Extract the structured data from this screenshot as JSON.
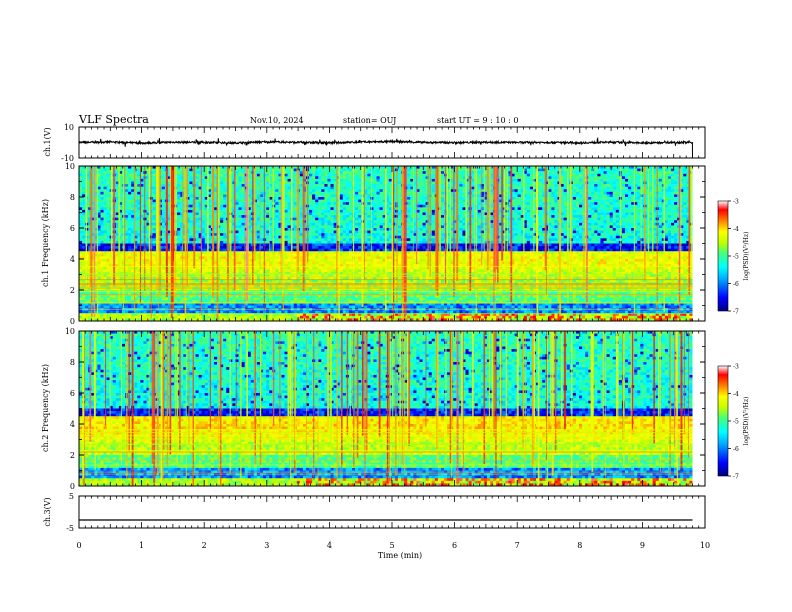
{
  "header": {
    "title": "VLF Spectra",
    "date": "Nov.10, 2024",
    "station": "station= OUJ",
    "start": "start UT = 9 : 10 : 0"
  },
  "colors": {
    "waveform": "#000000",
    "background": "#ffffff",
    "colormap": [
      "#000080",
      "#0000ff",
      "#00a0ff",
      "#00ffff",
      "#40ff80",
      "#c0ff00",
      "#ffff00",
      "#ff8000",
      "#ff0000",
      "#ffffff"
    ]
  },
  "chart_data": [
    {
      "type": "line",
      "id": "ch1_waveform",
      "ylabel": "ch.1(V)",
      "ylim": [
        -10,
        10
      ],
      "y_ticks": [
        "10",
        "-10"
      ],
      "x": [
        0,
        0.5,
        1,
        1.5,
        2,
        2.5,
        3,
        3.5,
        4,
        4.5,
        5,
        5.5,
        6,
        6.5,
        7,
        7.5,
        8,
        8.5,
        9,
        9.5,
        9.8
      ],
      "y": [
        0,
        0.3,
        -0.4,
        0.2,
        0.1,
        -0.3,
        0.4,
        0.1,
        -0.2,
        0.3,
        0.6,
        0.1,
        -0.1,
        0.2,
        0.0,
        0.1,
        -0.2,
        0.2,
        -0.3,
        0.1,
        0
      ],
      "grid": false
    },
    {
      "type": "heatmap",
      "id": "ch1_spectrogram",
      "ylabel": "ch.1 Frequency (kHz)",
      "ylim": [
        0,
        10
      ],
      "y_ticks": [
        "0",
        "2",
        "4",
        "6",
        "8",
        "10"
      ],
      "colorbar": {
        "label": "log(PSD)(V²/Hz)",
        "range": [
          -7,
          -3
        ],
        "ticks": [
          "-3",
          "-4",
          "-5",
          "-6",
          "-7"
        ]
      }
    },
    {
      "type": "heatmap",
      "id": "ch2_spectrogram",
      "ylabel": "ch.2 Frequency (kHz)",
      "ylim": [
        0,
        10
      ],
      "y_ticks": [
        "0",
        "2",
        "4",
        "6",
        "8",
        "10"
      ],
      "colorbar": {
        "label": "log(PSD)(V²/Hz)",
        "range": [
          -7,
          -3
        ],
        "ticks": [
          "-3",
          "-4",
          "-5",
          "-6",
          "-7"
        ]
      }
    },
    {
      "type": "line",
      "id": "ch3_waveform",
      "ylabel": "ch.3(V)",
      "ylim": [
        -5,
        5
      ],
      "y_ticks": [
        "5",
        "-5"
      ],
      "x": [
        0,
        9.8
      ],
      "y": [
        -2.5,
        -2.5
      ],
      "grid": false
    }
  ],
  "xaxis": {
    "label": "Time (min)",
    "xlim": [
      0,
      10
    ],
    "ticks": [
      "0",
      "1",
      "2",
      "3",
      "4",
      "5",
      "6",
      "7",
      "8",
      "9",
      "10"
    ]
  }
}
